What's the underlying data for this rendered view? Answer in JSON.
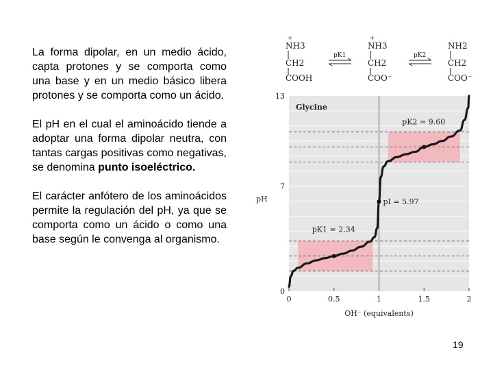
{
  "slide": {
    "paragraph1": "La forma dipolar, en un medio ácido, capta protones y se comporta como una base y en un medio básico libera protones y se comporta como un ácido.",
    "paragraph2_main": "El pH en el cual el aminoácido tiende a adoptar una forma dipolar neutra, con tantas cargas positivas como negativas, se denomina ",
    "paragraph2_bold": "punto isoeléctrico.",
    "paragraph3": "El carácter anfótero de los aminoácidos permite la regulación del pH, ya que se comporta como un ácido o como una base según le convenga al organismo.",
    "page_number": "19"
  },
  "scheme": {
    "species1": {
      "charge": "+",
      "top": "NH3",
      "mid": "CH2",
      "bottom": "COOH"
    },
    "arrow1": "pK1",
    "species2": {
      "charge": "+",
      "top": "NH3",
      "mid": "CH2",
      "bottom": "COO⁻"
    },
    "arrow2": "pK2",
    "species3": {
      "charge": "",
      "top": "NH2",
      "mid": "CH2",
      "bottom": "COO⁻"
    }
  },
  "chart_data": {
    "type": "line",
    "title": "Glycine",
    "xlabel": "OH⁻ (equivalents)",
    "ylabel": "pH",
    "xlim": [
      0,
      2
    ],
    "ylim": [
      0,
      13
    ],
    "x_ticks": [
      "0",
      "0.5",
      "1",
      "1.5",
      "2"
    ],
    "y_ticks": [
      "0",
      "7",
      "13"
    ],
    "curve_points": [
      [
        0.0,
        0.3
      ],
      [
        0.02,
        1.0
      ],
      [
        0.05,
        1.35
      ],
      [
        0.1,
        1.56
      ],
      [
        0.2,
        1.85
      ],
      [
        0.3,
        2.05
      ],
      [
        0.4,
        2.2
      ],
      [
        0.5,
        2.34
      ],
      [
        0.6,
        2.5
      ],
      [
        0.7,
        2.7
      ],
      [
        0.8,
        2.96
      ],
      [
        0.9,
        3.3
      ],
      [
        0.95,
        3.6
      ],
      [
        0.98,
        4.2
      ],
      [
        1.0,
        5.97
      ],
      [
        1.02,
        7.6
      ],
      [
        1.05,
        8.3
      ],
      [
        1.1,
        8.65
      ],
      [
        1.2,
        8.93
      ],
      [
        1.3,
        9.12
      ],
      [
        1.4,
        9.28
      ],
      [
        1.5,
        9.6
      ],
      [
        1.6,
        9.78
      ],
      [
        1.7,
        10.0
      ],
      [
        1.8,
        10.3
      ],
      [
        1.9,
        10.7
      ],
      [
        1.95,
        11.4
      ],
      [
        1.99,
        12.2
      ],
      [
        2.0,
        13.0
      ]
    ],
    "marked_points": [
      {
        "x": 0.5,
        "y": 2.34,
        "label": "pK1 = 2.34"
      },
      {
        "x": 1.0,
        "y": 5.97,
        "label": "pI = 5.97"
      },
      {
        "x": 1.5,
        "y": 9.6,
        "label": "pK2 = 9.60"
      }
    ],
    "buffer_regions": [
      {
        "x": [
          0.1,
          0.93
        ],
        "y": [
          1.34,
          3.34
        ]
      },
      {
        "x": [
          1.1,
          1.9
        ],
        "y": [
          8.6,
          10.6
        ]
      }
    ],
    "colors": {
      "plot_bg": "#e6e6e6",
      "buffer": "#f2b9bf",
      "curve": "#1a1a1a"
    }
  }
}
